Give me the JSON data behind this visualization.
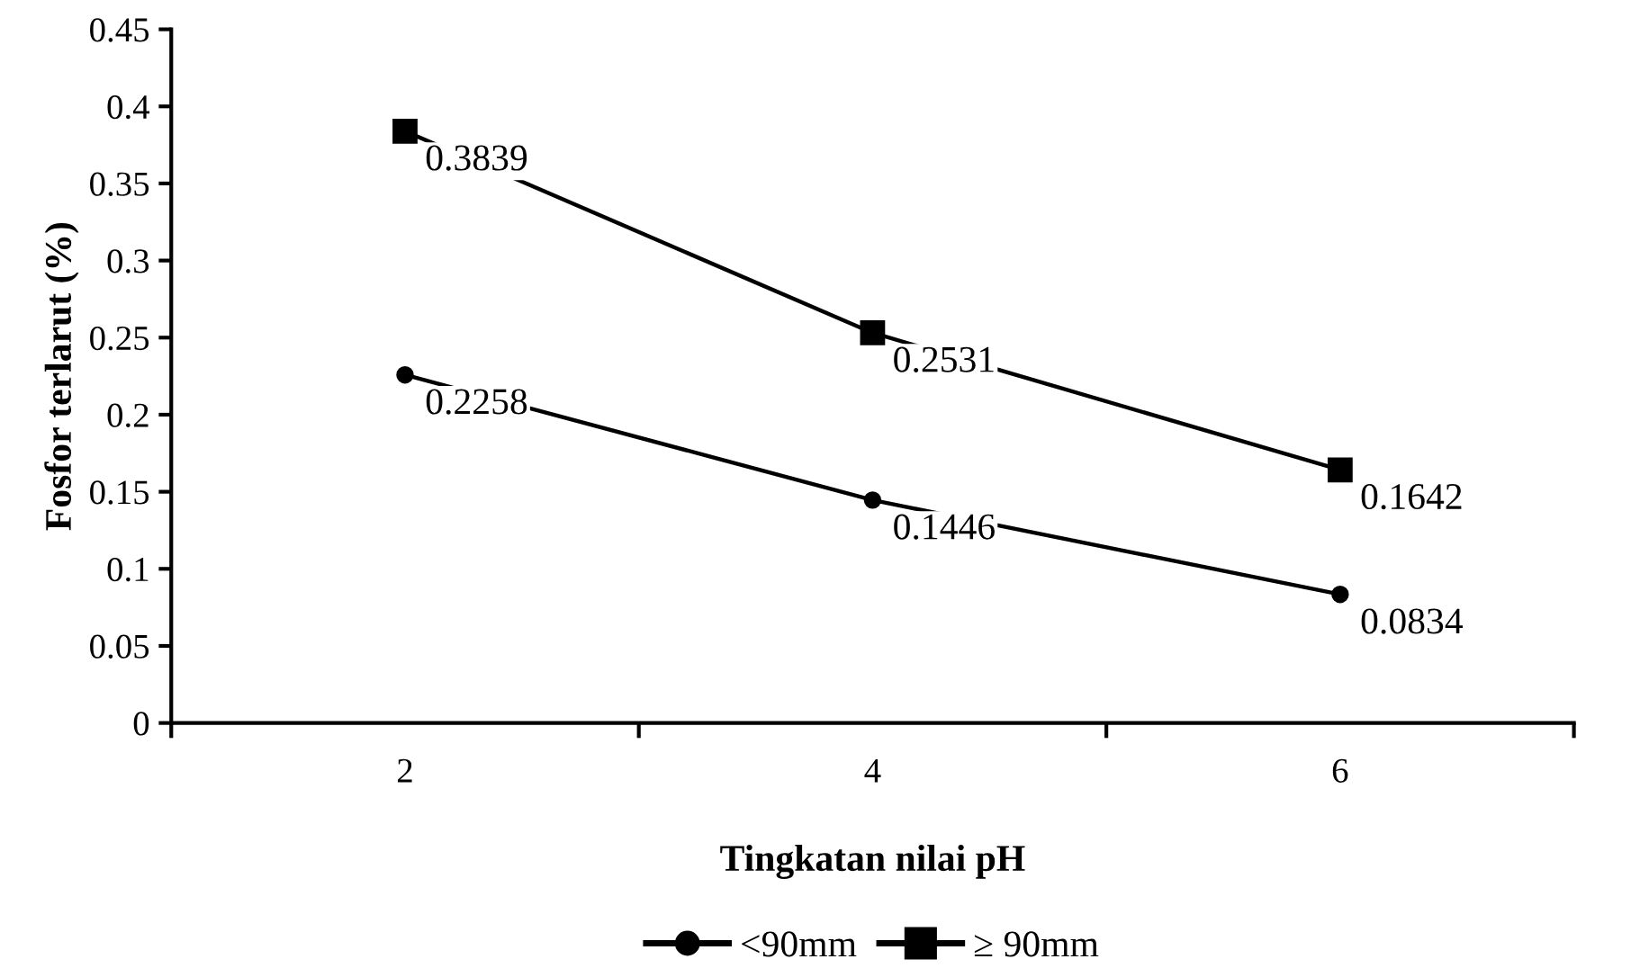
{
  "chart_data": {
    "type": "line",
    "xlabel": "Tingkatan nilai pH",
    "ylabel": "Fosfor terlarut (%)",
    "categories": [
      "2",
      "4",
      "6"
    ],
    "series": [
      {
        "name": "<90mm",
        "color": "#000000",
        "marker": "circle",
        "values": [
          0.2258,
          0.1446,
          0.0834
        ]
      },
      {
        "name": "≥ 90mm",
        "color": "#000000",
        "marker": "square",
        "values": [
          0.3839,
          0.2531,
          0.1642
        ]
      }
    ],
    "ylim": [
      0,
      0.45
    ],
    "yticks": [
      0,
      0.05,
      0.1,
      0.15,
      0.2,
      0.25,
      0.3,
      0.35,
      0.4,
      0.45
    ],
    "data_labels": true,
    "legend": "bottom",
    "grid": false,
    "line_style": "solid"
  }
}
